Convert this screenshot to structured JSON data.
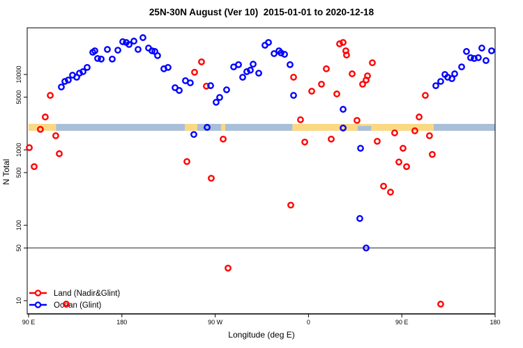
{
  "chart_data": {
    "type": "scatter",
    "title": "25N-30N August (Ver 10)  2015-01-01 to 2020-12-18",
    "xlabel": "Longitude (deg E)",
    "ylabel": "N Total",
    "x_axis": {
      "units": "deg E (wrapped, 90E eastward to 180)",
      "range": [
        90,
        540
      ],
      "ticks": [
        {
          "value": 90,
          "label": "90 E"
        },
        {
          "value": 180,
          "label": "180"
        },
        {
          "value": 270,
          "label": "90 W"
        },
        {
          "value": 360,
          "label": "0"
        },
        {
          "value": 450,
          "label": "90 E"
        },
        {
          "value": 540,
          "label": "180"
        }
      ]
    },
    "y_axis": {
      "scale": "log10",
      "range": [
        7,
        41500
      ],
      "ticks": [
        {
          "value": 10,
          "label": "10"
        },
        {
          "value": 50,
          "label": "50"
        },
        {
          "value": 100,
          "label": "100"
        },
        {
          "value": 500,
          "label": "500"
        },
        {
          "value": 1000,
          "label": "1000"
        },
        {
          "value": 5000,
          "label": "5000"
        },
        {
          "value": 10000,
          "label": "10000"
        }
      ]
    },
    "reference_line": {
      "y": 50,
      "color": "#7d7d7d"
    },
    "surface_band": {
      "description": "land/ocean surface-type strip drawn across the plot",
      "n_range": [
        1790,
        2210
      ],
      "colors": {
        "land": "#FAD884",
        "ocean": "#A9BED9"
      },
      "segments": [
        {
          "from": 90,
          "to": 116.5,
          "type": "land"
        },
        {
          "from": 116.5,
          "to": 240.7,
          "type": "ocean"
        },
        {
          "from": 240.7,
          "to": 252.8,
          "type": "land"
        },
        {
          "from": 252.8,
          "to": 344.5,
          "type": "ocean"
        },
        {
          "from": 344.5,
          "to": 480.8,
          "type": "land"
        },
        {
          "from": 480.8,
          "to": 540,
          "type": "ocean"
        }
      ],
      "overlays": [
        {
          "from": 275.7,
          "to": 279.7,
          "type": "land",
          "note": "thin land sliver"
        },
        {
          "from": 407.5,
          "to": 420.5,
          "type": "ocean",
          "note": "ocean notch in land segment"
        }
      ]
    },
    "series": [
      {
        "name": "Land (Nadir&Glint)",
        "color": "#FF0000",
        "marker": "open-circle",
        "points": [
          [
            90.7,
            1070
          ],
          [
            95.4,
            600
          ],
          [
            101.4,
            1870
          ],
          [
            106.1,
            2730
          ],
          [
            110.9,
            5280
          ],
          [
            116.2,
            1540
          ],
          [
            119.6,
            890
          ],
          [
            126.3,
            9
          ],
          [
            242.7,
            700
          ],
          [
            250.1,
            10700
          ],
          [
            256.8,
            14700
          ],
          [
            261.5,
            7000
          ],
          [
            266.2,
            420
          ],
          [
            277.7,
            1390
          ],
          [
            282.4,
            27
          ],
          [
            342.9,
            185
          ],
          [
            345.6,
            9200
          ],
          [
            352.3,
            2510
          ],
          [
            356.4,
            1270
          ],
          [
            363.1,
            6000
          ],
          [
            372.5,
            7430
          ],
          [
            377.2,
            11900
          ],
          [
            381.9,
            1390
          ],
          [
            387.3,
            5520
          ],
          [
            390.0,
            25500
          ],
          [
            393.4,
            26600
          ],
          [
            396.0,
            20600
          ],
          [
            396.7,
            18100
          ],
          [
            402.1,
            10200
          ],
          [
            406.8,
            2460
          ],
          [
            412.2,
            7430
          ],
          [
            415.6,
            8440
          ],
          [
            416.9,
            9590
          ],
          [
            421.6,
            14300
          ],
          [
            426.3,
            1300
          ],
          [
            432.4,
            330
          ],
          [
            439.1,
            275
          ],
          [
            443.1,
            1680
          ],
          [
            447.2,
            690
          ],
          [
            451.2,
            1050
          ],
          [
            454.6,
            600
          ],
          [
            462.6,
            1790
          ],
          [
            466.7,
            2730
          ],
          [
            472.7,
            5280
          ],
          [
            476.7,
            1540
          ],
          [
            479.4,
            870
          ],
          [
            487.5,
            9
          ]
        ]
      },
      {
        "name": "Ocean (Glint)",
        "color": "#0000FF",
        "marker": "open-circle",
        "points": [
          [
            121.6,
            6820
          ],
          [
            125.0,
            8090
          ],
          [
            128.3,
            8440
          ],
          [
            132.4,
            9790
          ],
          [
            136.4,
            9190
          ],
          [
            139.1,
            10400
          ],
          [
            142.5,
            10900
          ],
          [
            146.5,
            12400
          ],
          [
            151.9,
            19700
          ],
          [
            153.9,
            20600
          ],
          [
            156.6,
            16300
          ],
          [
            160.0,
            16000
          ],
          [
            166.0,
            21500
          ],
          [
            170.7,
            16000
          ],
          [
            176.1,
            21000
          ],
          [
            180.8,
            27200
          ],
          [
            184.2,
            26600
          ],
          [
            186.9,
            25000
          ],
          [
            191.6,
            27700
          ],
          [
            195.6,
            21500
          ],
          [
            200.3,
            30800
          ],
          [
            205.7,
            22400
          ],
          [
            209.1,
            20600
          ],
          [
            211.8,
            20200
          ],
          [
            214.4,
            17800
          ],
          [
            220.5,
            11900
          ],
          [
            224.5,
            12400
          ],
          [
            231.3,
            6680
          ],
          [
            235.3,
            6140
          ],
          [
            241.3,
            8270
          ],
          [
            246.0,
            7750
          ],
          [
            249.4,
            1600
          ],
          [
            262.2,
            1990
          ],
          [
            265.6,
            7110
          ],
          [
            270.9,
            4280
          ],
          [
            274.3,
            4960
          ],
          [
            281.0,
            6260
          ],
          [
            287.8,
            12600
          ],
          [
            292.5,
            13500
          ],
          [
            296.5,
            9190
          ],
          [
            300.5,
            10900
          ],
          [
            303.9,
            11400
          ],
          [
            306.6,
            13700
          ],
          [
            312.0,
            10400
          ],
          [
            318.0,
            24400
          ],
          [
            321.4,
            26600
          ],
          [
            326.8,
            18900
          ],
          [
            331.5,
            20600
          ],
          [
            333.5,
            19300
          ],
          [
            336.9,
            18500
          ],
          [
            342.2,
            13500
          ],
          [
            345.6,
            5280
          ],
          [
            393.4,
            3450
          ],
          [
            393.4,
            1950
          ],
          [
            409.5,
            123
          ],
          [
            410.2,
            1050
          ],
          [
            415.6,
            50
          ],
          [
            482.8,
            7100
          ],
          [
            487.5,
            8090
          ],
          [
            491.6,
            10000
          ],
          [
            494.3,
            9190
          ],
          [
            498.3,
            8800
          ],
          [
            501.0,
            10200
          ],
          [
            507.7,
            12600
          ],
          [
            512.4,
            20200
          ],
          [
            516.4,
            16700
          ],
          [
            519.8,
            16300
          ],
          [
            523.8,
            16700
          ],
          [
            527.2,
            22400
          ],
          [
            531.2,
            15300
          ],
          [
            536.6,
            20600
          ]
        ]
      }
    ],
    "legend": {
      "position": "bottom-left",
      "items": [
        {
          "label": "Land (Nadir&Glint)",
          "color": "#FF0000"
        },
        {
          "label": "Ocean (Glint)",
          "color": "#0000FF"
        }
      ]
    }
  }
}
